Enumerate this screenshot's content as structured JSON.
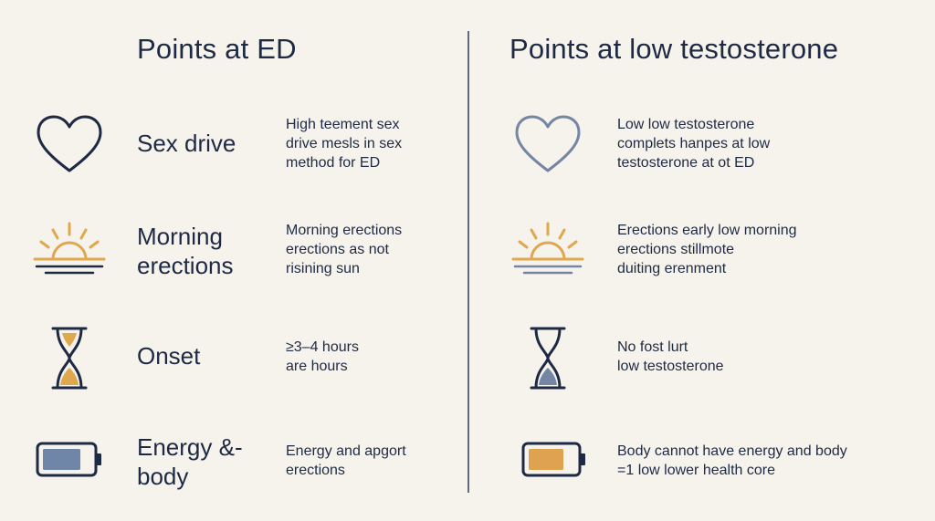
{
  "colors": {
    "background": "#f6f2ec",
    "navy": "#1e2a44",
    "steel_blue": "#7486a3",
    "gold": "#e0a84e",
    "battery_blue_fill": "#7086a8",
    "battery_gold_fill": "#dfa250",
    "divider": "#5f6a80"
  },
  "left": {
    "title": "Points at ED",
    "rows": [
      {
        "icon": "heart-icon",
        "label": "Sex drive",
        "desc": "High teement sex\ndrive mesls in sex\nmethod for ED"
      },
      {
        "icon": "sunrise-icon",
        "label": "Morning erections",
        "desc": "Morning erections\nerections as not\nrisining sun"
      },
      {
        "icon": "hourglass-icon",
        "label": "Onset",
        "desc": "≥3–4 hours\nare hours"
      },
      {
        "icon": "battery-icon",
        "label": "Energy &- body",
        "desc": "Energy and apgort\nerections"
      }
    ]
  },
  "right": {
    "title": "Points at low testosterone",
    "rows": [
      {
        "icon": "heart-icon",
        "desc": "Low low testosterone\ncomplets hanpes at low\ntestosterone at ot ED"
      },
      {
        "icon": "sunrise-icon",
        "desc": "Erections early low morning\nerections stillmote\nduiting erenment"
      },
      {
        "icon": "hourglass-icon",
        "desc": "No fost lurt\nlow testosterone"
      },
      {
        "icon": "battery-icon",
        "desc": "Body cannot have energy and body\n=1 low lower health core"
      }
    ]
  }
}
